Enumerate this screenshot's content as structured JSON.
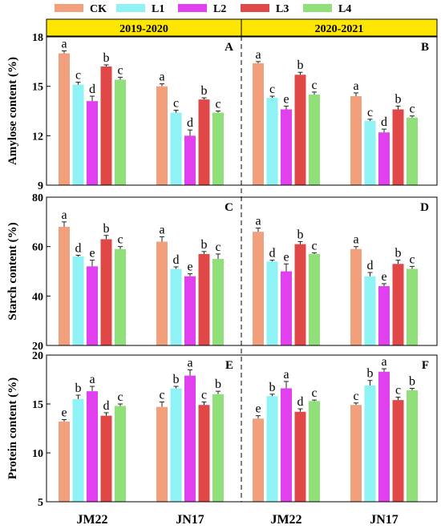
{
  "figure": {
    "legend": [
      {
        "label": "CK",
        "color": "#F2A07B"
      },
      {
        "label": "L1",
        "color": "#8FF3F6"
      },
      {
        "label": "L2",
        "color": "#E040EE"
      },
      {
        "label": "L3",
        "color": "#E04848"
      },
      {
        "label": "L4",
        "color": "#90E07A"
      }
    ],
    "seasons": [
      "2019-2020",
      "2020-2021"
    ],
    "season_band_color": "#FFE600",
    "categories": [
      "JM22",
      "JN17",
      "JM22",
      "JN17"
    ]
  },
  "chart_data": [
    {
      "type": "bar",
      "panel_label": "A",
      "season": "2019-2020",
      "ylabel": "Amylose content (%)",
      "ylim": [
        9,
        18
      ],
      "yticks": [
        9,
        12,
        15,
        18
      ],
      "categories": [
        "JM22",
        "JN17"
      ],
      "series": [
        {
          "name": "CK",
          "values": [
            17.0,
            15.0
          ],
          "errors": [
            0.15,
            0.15
          ],
          "letters": [
            "a",
            "a"
          ]
        },
        {
          "name": "L1",
          "values": [
            15.1,
            13.4
          ],
          "errors": [
            0.15,
            0.15
          ],
          "letters": [
            "c",
            "c"
          ]
        },
        {
          "name": "L2",
          "values": [
            14.1,
            12.0
          ],
          "errors": [
            0.3,
            0.35
          ],
          "letters": [
            "d",
            "d"
          ]
        },
        {
          "name": "L3",
          "values": [
            16.2,
            14.2
          ],
          "errors": [
            0.1,
            0.1
          ],
          "letters": [
            "b",
            "b"
          ]
        },
        {
          "name": "L4",
          "values": [
            15.4,
            13.4
          ],
          "errors": [
            0.15,
            0.1
          ],
          "letters": [
            "c",
            "c"
          ]
        }
      ]
    },
    {
      "type": "bar",
      "panel_label": "B",
      "season": "2020-2021",
      "ylabel": "",
      "ylim": [
        9,
        18
      ],
      "yticks": [
        9,
        12,
        15,
        18
      ],
      "categories": [
        "JM22",
        "JN17"
      ],
      "series": [
        {
          "name": "CK",
          "values": [
            16.4,
            14.4
          ],
          "errors": [
            0.1,
            0.2
          ],
          "letters": [
            "a",
            "a"
          ]
        },
        {
          "name": "L1",
          "values": [
            14.3,
            12.9
          ],
          "errors": [
            0.1,
            0.1
          ],
          "letters": [
            "c",
            "c"
          ]
        },
        {
          "name": "L2",
          "values": [
            13.6,
            12.2
          ],
          "errors": [
            0.2,
            0.2
          ],
          "letters": [
            "e",
            "d"
          ]
        },
        {
          "name": "L3",
          "values": [
            15.7,
            13.6
          ],
          "errors": [
            0.15,
            0.2
          ],
          "letters": [
            "b",
            "b"
          ]
        },
        {
          "name": "L4",
          "values": [
            14.5,
            13.1
          ],
          "errors": [
            0.15,
            0.1
          ],
          "letters": [
            "c",
            "c"
          ]
        }
      ]
    },
    {
      "type": "bar",
      "panel_label": "C",
      "season": "2019-2020",
      "ylabel": "Starch content (%)",
      "ylim": [
        20,
        80
      ],
      "yticks": [
        20,
        40,
        60,
        80
      ],
      "categories": [
        "JM22",
        "JN17"
      ],
      "series": [
        {
          "name": "CK",
          "values": [
            68,
            62
          ],
          "errors": [
            2,
            2
          ],
          "letters": [
            "a",
            "a"
          ]
        },
        {
          "name": "L1",
          "values": [
            56,
            51
          ],
          "errors": [
            0.5,
            0.8
          ],
          "letters": [
            "d",
            "d"
          ]
        },
        {
          "name": "L2",
          "values": [
            52,
            48
          ],
          "errors": [
            2.5,
            1
          ],
          "letters": [
            "e",
            "e"
          ]
        },
        {
          "name": "L3",
          "values": [
            63,
            57
          ],
          "errors": [
            1.5,
            1
          ],
          "letters": [
            "b",
            "b"
          ]
        },
        {
          "name": "L4",
          "values": [
            59,
            55
          ],
          "errors": [
            1,
            2
          ],
          "letters": [
            "c",
            "c"
          ]
        }
      ]
    },
    {
      "type": "bar",
      "panel_label": "D",
      "season": "2020-2021",
      "ylabel": "",
      "ylim": [
        20,
        80
      ],
      "yticks": [
        20,
        40,
        60,
        80
      ],
      "categories": [
        "JM22",
        "JN17"
      ],
      "series": [
        {
          "name": "CK",
          "values": [
            66,
            59
          ],
          "errors": [
            1.5,
            1
          ],
          "letters": [
            "a",
            "a"
          ]
        },
        {
          "name": "L1",
          "values": [
            54,
            48
          ],
          "errors": [
            0.5,
            1.5
          ],
          "letters": [
            "d",
            "d"
          ]
        },
        {
          "name": "L2",
          "values": [
            50,
            44
          ],
          "errors": [
            3,
            1
          ],
          "letters": [
            "e",
            "e"
          ]
        },
        {
          "name": "L3",
          "values": [
            61,
            53
          ],
          "errors": [
            1,
            1.5
          ],
          "letters": [
            "b",
            "b"
          ]
        },
        {
          "name": "L4",
          "values": [
            57,
            51
          ],
          "errors": [
            0.5,
            1
          ],
          "letters": [
            "c",
            "c"
          ]
        }
      ]
    },
    {
      "type": "bar",
      "panel_label": "E",
      "season": "2019-2020",
      "ylabel": "Protein content (%)",
      "ylim": [
        5,
        20
      ],
      "yticks": [
        5,
        10,
        15,
        20
      ],
      "categories": [
        "JM22",
        "JN17"
      ],
      "series": [
        {
          "name": "CK",
          "values": [
            13.2,
            14.7
          ],
          "errors": [
            0.2,
            0.5
          ],
          "letters": [
            "e",
            "c"
          ]
        },
        {
          "name": "L1",
          "values": [
            15.5,
            16.6
          ],
          "errors": [
            0.4,
            0.2
          ],
          "letters": [
            "b",
            "b"
          ]
        },
        {
          "name": "L2",
          "values": [
            16.3,
            17.9
          ],
          "errors": [
            0.5,
            0.6
          ],
          "letters": [
            "a",
            "a"
          ]
        },
        {
          "name": "L3",
          "values": [
            13.8,
            14.9
          ],
          "errors": [
            0.3,
            0.3
          ],
          "letters": [
            "d",
            "c"
          ]
        },
        {
          "name": "L4",
          "values": [
            14.8,
            16.0
          ],
          "errors": [
            0.2,
            0.3
          ],
          "letters": [
            "c",
            "b"
          ]
        }
      ]
    },
    {
      "type": "bar",
      "panel_label": "F",
      "season": "2020-2021",
      "ylabel": "",
      "ylim": [
        5,
        20
      ],
      "yticks": [
        5,
        10,
        15,
        20
      ],
      "categories": [
        "JM22",
        "JN17"
      ],
      "series": [
        {
          "name": "CK",
          "values": [
            13.5,
            14.9
          ],
          "errors": [
            0.3,
            0.2
          ],
          "letters": [
            "e",
            "c"
          ]
        },
        {
          "name": "L1",
          "values": [
            15.8,
            16.9
          ],
          "errors": [
            0.2,
            0.5
          ],
          "letters": [
            "b",
            "b"
          ]
        },
        {
          "name": "L2",
          "values": [
            16.6,
            18.3
          ],
          "errors": [
            0.7,
            0.3
          ],
          "letters": [
            "a",
            "a"
          ]
        },
        {
          "name": "L3",
          "values": [
            14.2,
            15.4
          ],
          "errors": [
            0.3,
            0.3
          ],
          "letters": [
            "d",
            "c"
          ]
        },
        {
          "name": "L4",
          "values": [
            15.3,
            16.4
          ],
          "errors": [
            0.1,
            0.2
          ],
          "letters": [
            "c",
            "b"
          ]
        }
      ]
    }
  ]
}
